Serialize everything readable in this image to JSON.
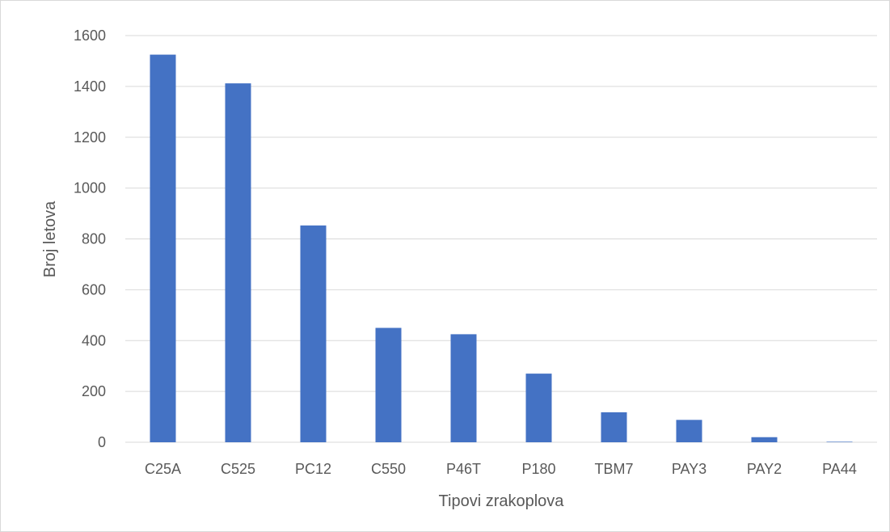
{
  "chart_data": {
    "type": "bar",
    "title": "",
    "xlabel": "Tipovi zrakoplova",
    "ylabel": "Broj letova",
    "categories": [
      "C25A",
      "C525",
      "PC12",
      "C550",
      "P46T",
      "P180",
      "TBM7",
      "PAY3",
      "PAY2",
      "PA44"
    ],
    "values": [
      1525,
      1412,
      853,
      450,
      425,
      270,
      118,
      88,
      20,
      2
    ],
    "ylim": [
      0,
      1600
    ],
    "yticks": [
      0,
      200,
      400,
      600,
      800,
      1000,
      1200,
      1400,
      1600
    ],
    "grid": true,
    "legend": "none",
    "bar_color": "#4472c4"
  }
}
